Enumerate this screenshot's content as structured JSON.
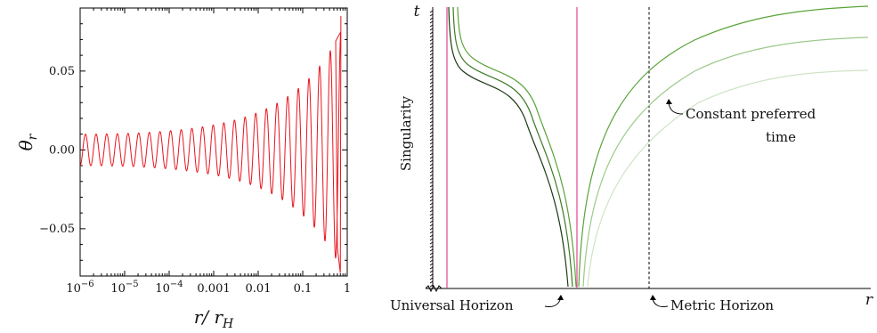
{
  "chart_data": [
    {
      "type": "line",
      "xscale": "log",
      "xlabel": "r/ r_H",
      "ylabel": "θ_r",
      "xlim": [
        1e-06,
        1
      ],
      "ylim": [
        -0.08,
        0.09
      ],
      "x_ticks": [
        {
          "value": 1e-06,
          "base": "10",
          "exp": "−6"
        },
        {
          "value": 1e-05,
          "base": "10",
          "exp": "−5"
        },
        {
          "value": 0.0001,
          "base": "10",
          "exp": "−4"
        },
        {
          "value": 0.001,
          "label": "0.001"
        },
        {
          "value": 0.01,
          "label": "0.01"
        },
        {
          "value": 0.1,
          "label": "0.1"
        },
        {
          "value": 1,
          "label": "1"
        }
      ],
      "y_ticks": [
        {
          "value": 0.05,
          "label": "0.05"
        },
        {
          "value": 0.0,
          "label": "0.00"
        },
        {
          "value": -0.05,
          "label": "−0.05"
        }
      ],
      "series": [
        {
          "color": "#e8141b",
          "model": "damped-oscillation",
          "x_start": 1e-06,
          "x_end": 0.72,
          "amplitude_at_start": 0.01,
          "amplitude_at_end": 0.075,
          "oscillations": 24.5,
          "peaks": [
            {
              "x": 0.55,
              "y": 0.069
            },
            {
              "x": 0.72,
              "y": 0.085
            }
          ],
          "troughs": [
            {
              "x": 0.6,
              "y": -0.062
            },
            {
              "x": 0.7,
              "y": -0.078
            }
          ]
        }
      ]
    },
    {
      "type": "line",
      "xlabel": "r",
      "ylabel": "t",
      "grid": false,
      "vertical_lines": [
        {
          "color": "#e0338a",
          "style": "solid",
          "label": "Universal Horizon"
        },
        {
          "color": "#e0338a",
          "style": "solid"
        },
        {
          "color": "#000000",
          "style": "dashed",
          "label": "Metric Horizon"
        }
      ],
      "series_colors": [
        "#1a3a12",
        "#3d7a26",
        "#5aa33a",
        "#5aa33a",
        "#9cc98a",
        "#cfe3c6"
      ],
      "annotations": {
        "left_axis": "Singularity",
        "universal_horizon": "Universal Horizon",
        "metric_horizon": "Metric Horizon",
        "constant_time_line1": "Constant preferred",
        "constant_time_line2": "time"
      }
    }
  ]
}
